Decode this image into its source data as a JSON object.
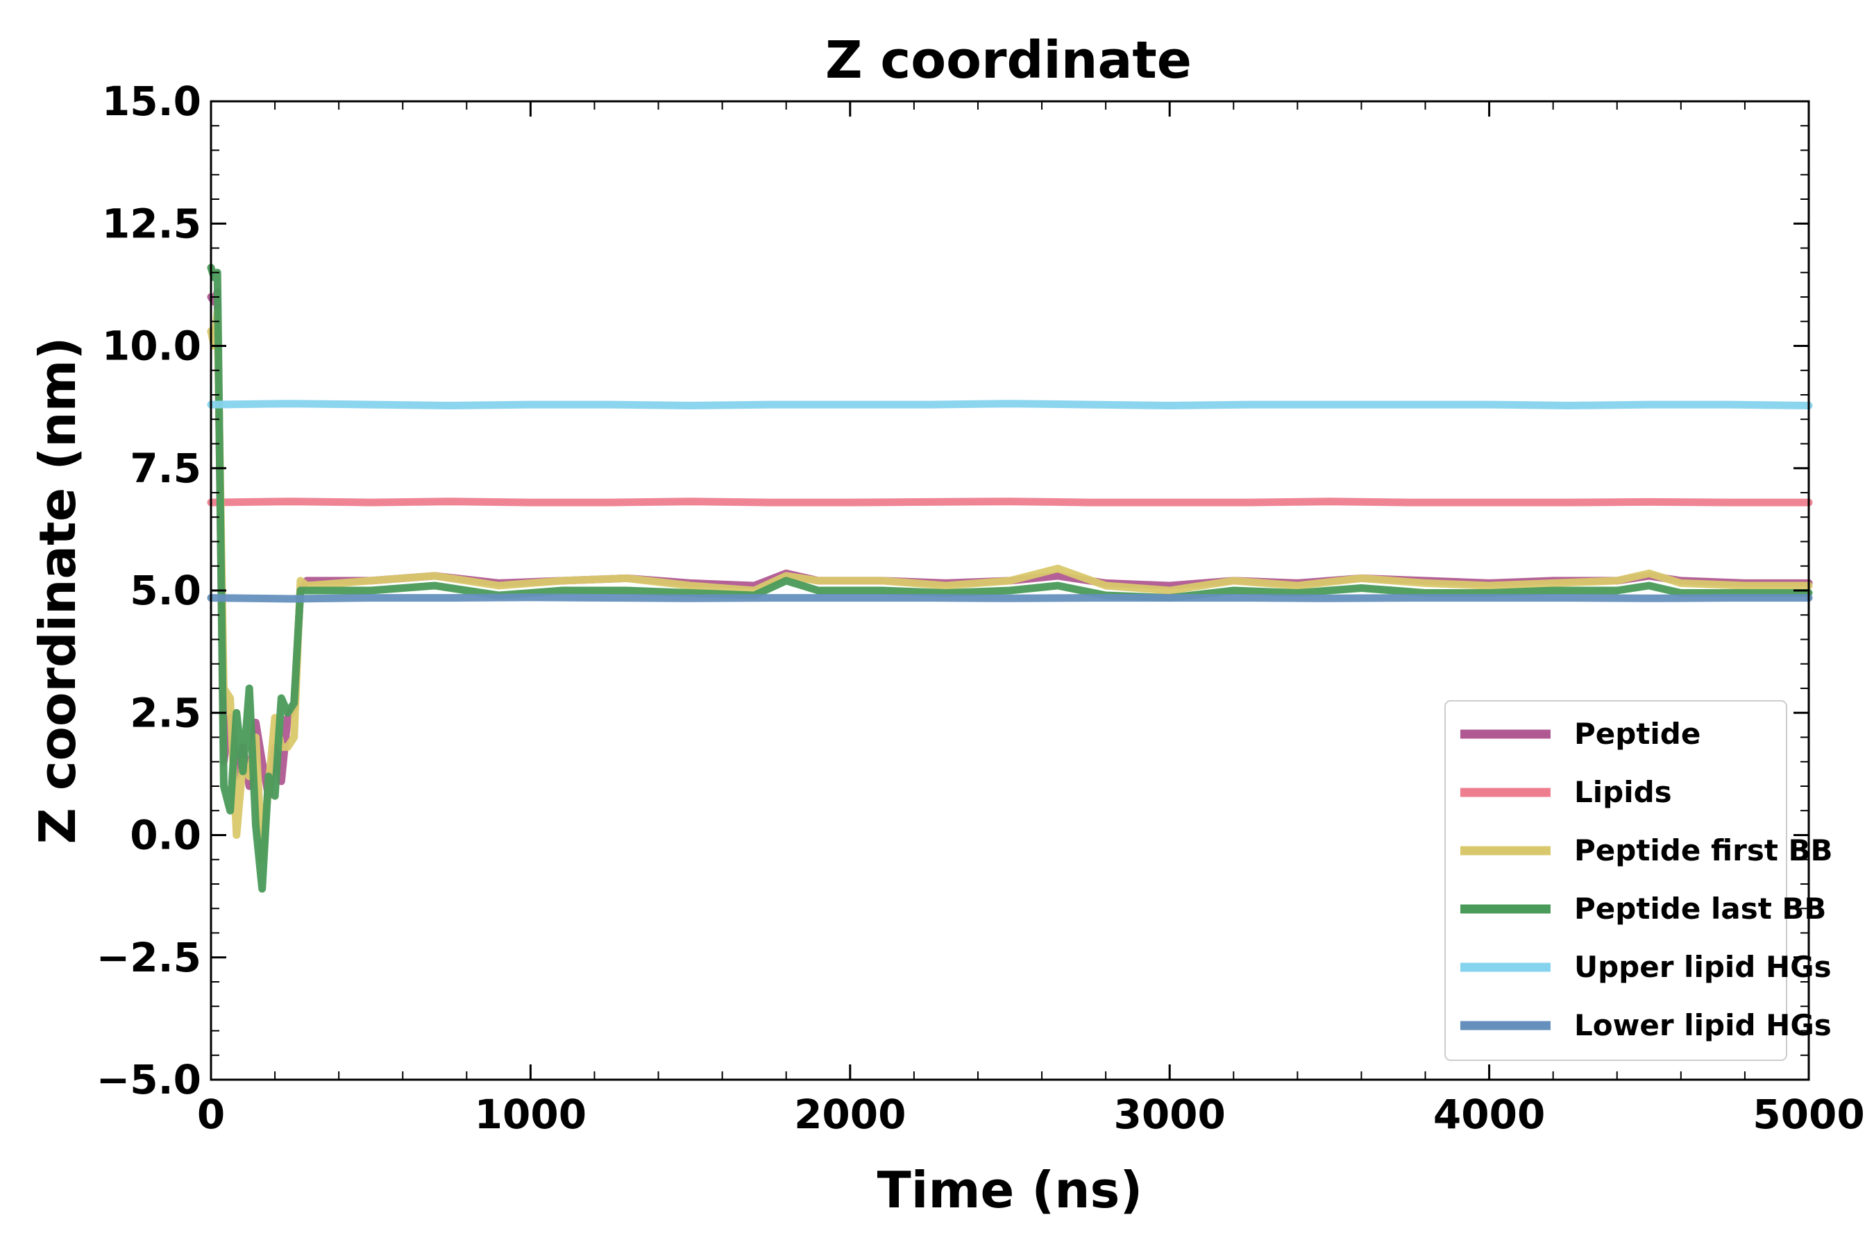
{
  "chart_data": {
    "type": "line",
    "title": "Z coordinate",
    "xlabel": "Time (ns)",
    "ylabel": "Z coordinate (nm)",
    "xlim": [
      0,
      5000
    ],
    "ylim": [
      -5.0,
      15.0
    ],
    "x_ticks": [
      0,
      1000,
      2000,
      3000,
      4000,
      5000
    ],
    "x_tick_labels": [
      "0",
      "1000",
      "2000",
      "3000",
      "4000",
      "5000"
    ],
    "y_ticks": [
      -5.0,
      -2.5,
      0.0,
      2.5,
      5.0,
      7.5,
      10.0,
      12.5,
      15.0
    ],
    "y_tick_labels": [
      "−5.0",
      "−2.5",
      "0.0",
      "2.5",
      "5.0",
      "7.5",
      "10.0",
      "12.5",
      "15.0"
    ],
    "grid": false,
    "legend_position": "lower-right",
    "series": [
      {
        "name": "Peptide",
        "color": "#b05891",
        "x": [
          0,
          10,
          20,
          40,
          60,
          80,
          100,
          120,
          140,
          160,
          180,
          200,
          220,
          240,
          260,
          280,
          300,
          500,
          700,
          900,
          1100,
          1300,
          1500,
          1700,
          1800,
          1900,
          2100,
          2300,
          2500,
          2650,
          2800,
          3000,
          3200,
          3400,
          3600,
          3800,
          4000,
          4200,
          4400,
          4500,
          4600,
          4800,
          5000
        ],
        "y": [
          11.0,
          10.9,
          11.1,
          1.5,
          2.4,
          1.2,
          1.8,
          1.0,
          2.3,
          1.5,
          0.8,
          1.8,
          1.1,
          2.4,
          2.6,
          5.0,
          5.2,
          5.2,
          5.3,
          5.15,
          5.2,
          5.25,
          5.15,
          5.1,
          5.35,
          5.2,
          5.2,
          5.15,
          5.2,
          5.3,
          5.15,
          5.1,
          5.2,
          5.15,
          5.25,
          5.2,
          5.15,
          5.2,
          5.2,
          5.3,
          5.2,
          5.15,
          5.15
        ]
      },
      {
        "name": "Lipids",
        "color": "#ee7e8e",
        "x": [
          0,
          250,
          500,
          750,
          1000,
          1250,
          1500,
          1750,
          2000,
          2250,
          2500,
          2750,
          3000,
          3250,
          3500,
          3750,
          4000,
          4250,
          4500,
          4750,
          5000
        ],
        "y": [
          6.8,
          6.82,
          6.8,
          6.82,
          6.8,
          6.8,
          6.82,
          6.8,
          6.8,
          6.81,
          6.82,
          6.8,
          6.8,
          6.8,
          6.82,
          6.8,
          6.8,
          6.8,
          6.81,
          6.8,
          6.8
        ]
      },
      {
        "name": "Peptide first BB",
        "color": "#d9c86b",
        "x": [
          0,
          10,
          20,
          40,
          60,
          80,
          100,
          120,
          140,
          160,
          180,
          200,
          220,
          240,
          260,
          280,
          300,
          500,
          700,
          900,
          1100,
          1300,
          1500,
          1700,
          1800,
          1900,
          2100,
          2300,
          2500,
          2650,
          2800,
          3000,
          3200,
          3400,
          3600,
          3800,
          4000,
          4200,
          4400,
          4500,
          4600,
          4800,
          5000
        ],
        "y": [
          10.3,
          10.0,
          10.7,
          3.0,
          2.8,
          0.0,
          1.5,
          1.2,
          2.0,
          -0.5,
          1.0,
          2.4,
          1.8,
          1.8,
          2.0,
          5.2,
          5.1,
          5.2,
          5.3,
          5.1,
          5.2,
          5.25,
          5.1,
          5.0,
          5.3,
          5.2,
          5.2,
          5.1,
          5.2,
          5.45,
          5.1,
          5.0,
          5.2,
          5.1,
          5.25,
          5.15,
          5.1,
          5.15,
          5.2,
          5.35,
          5.15,
          5.1,
          5.1
        ]
      },
      {
        "name": "Peptide last BB",
        "color": "#4a9a5a",
        "x": [
          0,
          10,
          20,
          40,
          60,
          80,
          100,
          120,
          140,
          160,
          180,
          200,
          220,
          240,
          260,
          280,
          300,
          500,
          700,
          900,
          1100,
          1300,
          1500,
          1700,
          1800,
          1900,
          2100,
          2300,
          2500,
          2650,
          2800,
          3000,
          3200,
          3400,
          3600,
          3800,
          4000,
          4200,
          4400,
          4500,
          4600,
          4800,
          5000
        ],
        "y": [
          11.6,
          11.4,
          11.5,
          1.0,
          0.5,
          2.5,
          1.3,
          3.0,
          0.2,
          -1.1,
          1.2,
          0.8,
          2.8,
          2.5,
          2.7,
          5.0,
          5.0,
          5.0,
          5.1,
          4.9,
          5.0,
          5.0,
          4.95,
          4.9,
          5.2,
          5.0,
          5.0,
          4.95,
          5.0,
          5.1,
          4.9,
          4.85,
          5.0,
          4.95,
          5.05,
          4.95,
          4.95,
          5.0,
          5.0,
          5.1,
          4.95,
          4.95,
          4.95
        ]
      },
      {
        "name": "Upper lipid HGs",
        "color": "#86d3ee",
        "x": [
          0,
          250,
          500,
          750,
          1000,
          1250,
          1500,
          1750,
          2000,
          2250,
          2500,
          2750,
          3000,
          3250,
          3500,
          3750,
          4000,
          4250,
          4500,
          4750,
          5000
        ],
        "y": [
          8.8,
          8.82,
          8.8,
          8.78,
          8.8,
          8.8,
          8.78,
          8.8,
          8.8,
          8.8,
          8.82,
          8.8,
          8.78,
          8.8,
          8.8,
          8.8,
          8.8,
          8.78,
          8.8,
          8.8,
          8.78
        ]
      },
      {
        "name": "Lower lipid HGs",
        "color": "#6590bd",
        "x": [
          0,
          250,
          500,
          750,
          1000,
          1250,
          1500,
          1750,
          2000,
          2250,
          2500,
          2750,
          3000,
          3250,
          3500,
          3750,
          4000,
          4250,
          4500,
          4750,
          5000
        ],
        "y": [
          4.85,
          4.83,
          4.85,
          4.85,
          4.86,
          4.85,
          4.84,
          4.85,
          4.85,
          4.85,
          4.84,
          4.85,
          4.85,
          4.85,
          4.84,
          4.85,
          4.85,
          4.85,
          4.84,
          4.85,
          4.85
        ]
      }
    ]
  }
}
